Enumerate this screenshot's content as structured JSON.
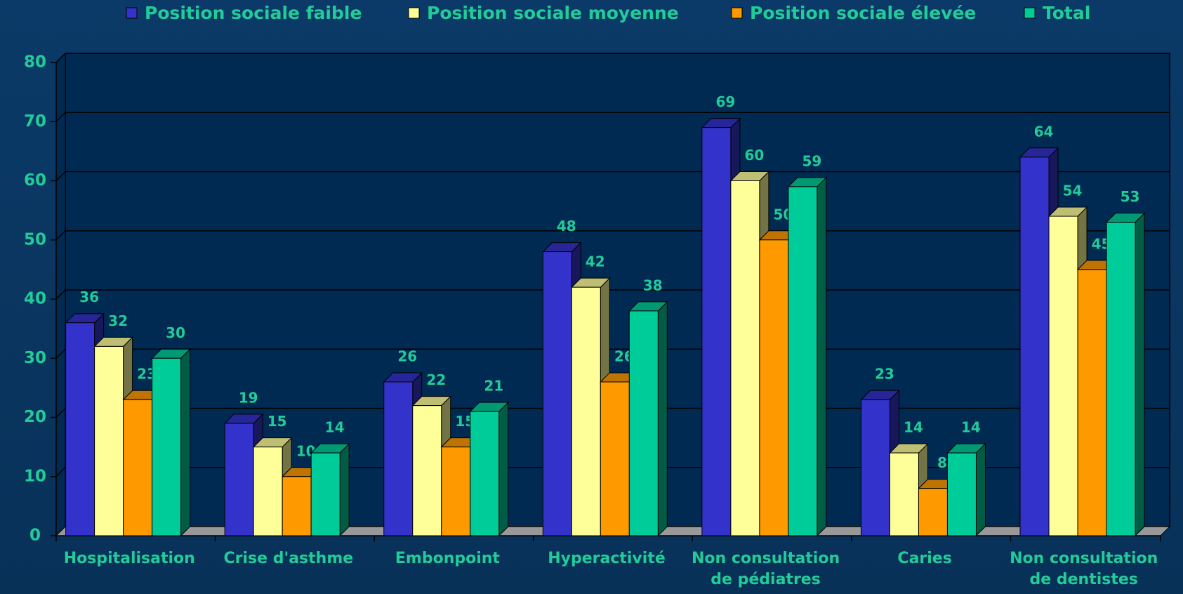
{
  "chart_data": {
    "type": "bar3d",
    "categories": [
      "Hospitalisation",
      "Crise d'asthme",
      "Embonpoint",
      "Hyperactivité",
      "Non consultation de pédiatres",
      "Caries",
      "Non consultation de dentistes"
    ],
    "series": [
      {
        "name": "Position sociale faible",
        "color": "#3333cc",
        "values": [
          36,
          19,
          26,
          48,
          69,
          23,
          64
        ]
      },
      {
        "name": "Position sociale moyenne",
        "color": "#ffff99",
        "values": [
          32,
          15,
          22,
          42,
          60,
          14,
          54
        ]
      },
      {
        "name": "Position sociale élevée",
        "color": "#ff9900",
        "values": [
          23,
          10,
          15,
          26,
          50,
          8,
          45
        ]
      },
      {
        "name": "Total",
        "color": "#00cc99",
        "values": [
          30,
          14,
          21,
          38,
          59,
          14,
          53
        ]
      }
    ],
    "ylim": [
      0,
      80
    ],
    "yticks": [
      0,
      10,
      20,
      30,
      40,
      50,
      60,
      70,
      80
    ],
    "grid": true,
    "legend": "top"
  }
}
